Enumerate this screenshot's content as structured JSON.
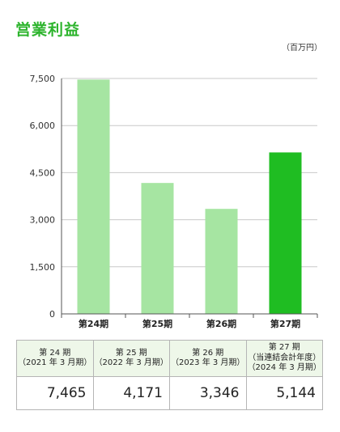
{
  "title": "営業利益",
  "unit": "（百万円）",
  "colors": {
    "title": "#2db42d",
    "bar_light": "#a6e5a2",
    "bar_highlight": "#1fbd22",
    "header_bg": "#eef7e9"
  },
  "chart_data": {
    "type": "bar",
    "title": "営業利益",
    "unit": "（百万円）",
    "categories": [
      "第24期",
      "第25期",
      "第26期",
      "第27期"
    ],
    "values": [
      7465,
      4171,
      3346,
      5144
    ],
    "highlight_index": 3,
    "ylim": [
      0,
      7500
    ],
    "yticks": [
      0,
      1500,
      3000,
      4500,
      6000,
      7500
    ],
    "ytick_labels": [
      "0",
      "1,500",
      "3,000",
      "4,500",
      "6,000",
      "7,500"
    ],
    "grid": true
  },
  "table": {
    "headers": [
      "第 24 期\n（2021 年 3 月期）",
      "第 25 期\n（2022 年 3 月期）",
      "第 26 期\n（2023 年 3 月期）",
      "第 27 期\n（当連結会計年度）\n（2024 年 3 月期）"
    ],
    "values": [
      "7,465",
      "4,171",
      "3,346",
      "5,144"
    ]
  }
}
